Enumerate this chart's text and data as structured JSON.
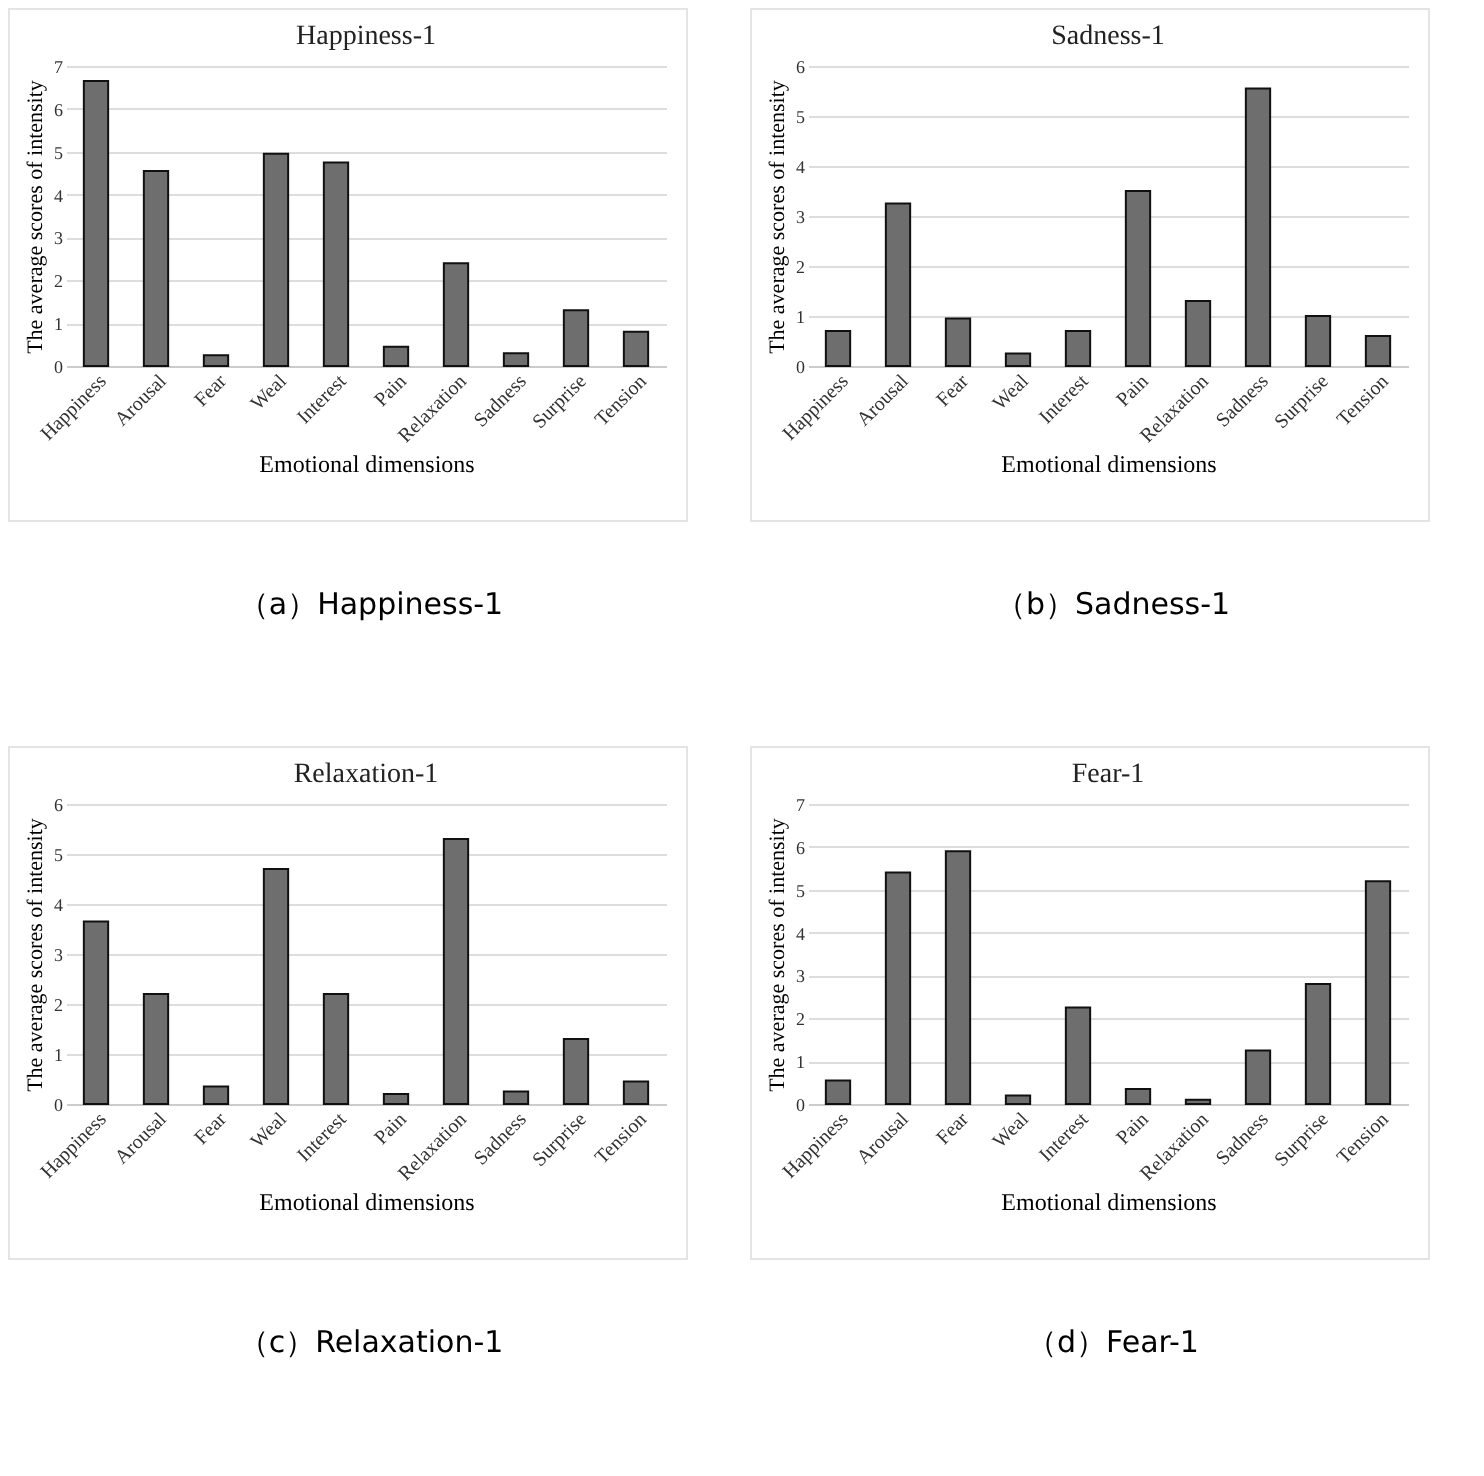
{
  "chart_data": [
    {
      "type": "bar",
      "title": "Happiness-1",
      "xlabel": "Emotional dimensions",
      "ylabel": "The average scores of intensity",
      "categories": [
        "Happiness",
        "Arousal",
        "Fear",
        "Weal",
        "Interest",
        "Pain",
        "Relaxation",
        "Sadness",
        "Surprise",
        "Tension"
      ],
      "values": [
        6.65,
        4.55,
        0.25,
        4.95,
        4.75,
        0.45,
        2.4,
        0.3,
        1.3,
        0.8
      ],
      "color": "#6e6e6e",
      "ylim": [
        0,
        7
      ],
      "yticks": [
        0,
        1,
        2,
        3,
        4,
        5,
        6,
        7
      ],
      "grid": "y",
      "annotations": [
        "（a）Happiness-1"
      ]
    },
    {
      "type": "bar",
      "title": "Sadness-1",
      "xlabel": "Emotional dimensions",
      "ylabel": "The average scores of intensity",
      "categories": [
        "Happiness",
        "Arousal",
        "Fear",
        "Weal",
        "Interest",
        "Pain",
        "Relaxation",
        "Sadness",
        "Surprise",
        "Tension"
      ],
      "values": [
        0.7,
        3.25,
        0.95,
        0.25,
        0.7,
        3.5,
        1.3,
        5.55,
        1.0,
        0.6
      ],
      "color": "#6e6e6e",
      "ylim": [
        0,
        6
      ],
      "yticks": [
        0,
        1,
        2,
        3,
        4,
        5,
        6
      ],
      "grid": "y",
      "annotations": [
        "（b）Sadness-1"
      ]
    },
    {
      "type": "bar",
      "title": "Relaxation-1",
      "xlabel": "Emotional dimensions",
      "ylabel": "The average scores of intensity",
      "categories": [
        "Happiness",
        "Arousal",
        "Fear",
        "Weal",
        "Interest",
        "Pain",
        "Relaxation",
        "Sadness",
        "Surprise",
        "Tension"
      ],
      "values": [
        3.65,
        2.2,
        0.35,
        4.7,
        2.2,
        0.2,
        5.3,
        0.25,
        1.3,
        0.45
      ],
      "color": "#6e6e6e",
      "ylim": [
        0,
        6
      ],
      "yticks": [
        0,
        1,
        2,
        3,
        4,
        5,
        6
      ],
      "grid": "y",
      "annotations": [
        "（c）Relaxation-1"
      ]
    },
    {
      "type": "bar",
      "title": "Fear-1",
      "xlabel": "Emotional dimensions",
      "ylabel": "The average scores of intensity",
      "categories": [
        "Happiness",
        "Arousal",
        "Fear",
        "Weal",
        "Interest",
        "Pain",
        "Relaxation",
        "Sadness",
        "Surprise",
        "Tension"
      ],
      "values": [
        0.55,
        5.4,
        5.9,
        0.2,
        2.25,
        0.35,
        0.1,
        1.25,
        2.8,
        5.2
      ],
      "color": "#6e6e6e",
      "ylim": [
        0,
        7
      ],
      "yticks": [
        0,
        1,
        2,
        3,
        4,
        5,
        6,
        7
      ],
      "grid": "y",
      "annotations": [
        "（d）Fear-1"
      ]
    }
  ]
}
